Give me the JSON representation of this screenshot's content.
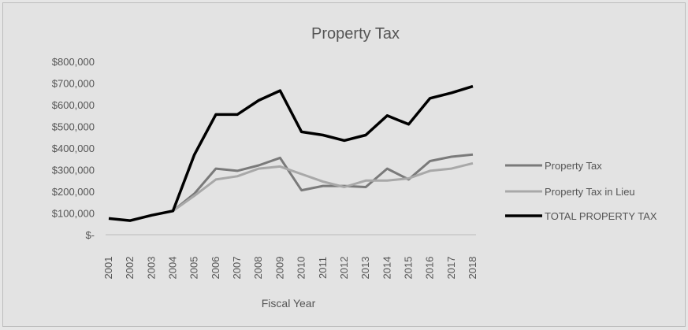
{
  "chart_data": {
    "type": "line",
    "title": "Property Tax",
    "xlabel": "Fiscal Year",
    "ylabel": "",
    "ylim": [
      0,
      800000
    ],
    "y_ticks": [
      0,
      100000,
      200000,
      300000,
      400000,
      500000,
      600000,
      700000,
      800000
    ],
    "y_tick_labels": [
      "$-",
      "$100,000",
      "$200,000",
      "$300,000",
      "$400,000",
      "$500,000",
      "$600,000",
      "$700,000",
      "$800,000"
    ],
    "categories": [
      "2001",
      "2002",
      "2003",
      "2004",
      "2005",
      "2006",
      "2007",
      "2008",
      "2009",
      "2010",
      "2011",
      "2012",
      "2013",
      "2014",
      "2015",
      "2016",
      "2017",
      "2018"
    ],
    "grid": false,
    "legend_position": "right",
    "series": [
      {
        "name": "Property Tax",
        "color": "#7a7a7a",
        "values": [
          null,
          null,
          null,
          110000,
          190000,
          305000,
          295000,
          320000,
          355000,
          205000,
          225000,
          225000,
          220000,
          305000,
          255000,
          340000,
          360000,
          370000
        ]
      },
      {
        "name": "Property Tax in Lieu",
        "color": "#a8a8a8",
        "values": [
          null,
          null,
          null,
          110000,
          180000,
          255000,
          270000,
          305000,
          315000,
          280000,
          245000,
          220000,
          250000,
          250000,
          260000,
          295000,
          305000,
          330000
        ]
      },
      {
        "name": "TOTAL PROPERTY TAX",
        "color": "#000000",
        "values": [
          75000,
          65000,
          90000,
          110000,
          370000,
          555000,
          555000,
          620000,
          665000,
          475000,
          460000,
          435000,
          460000,
          550000,
          510000,
          630000,
          655000,
          685000
        ]
      }
    ]
  }
}
